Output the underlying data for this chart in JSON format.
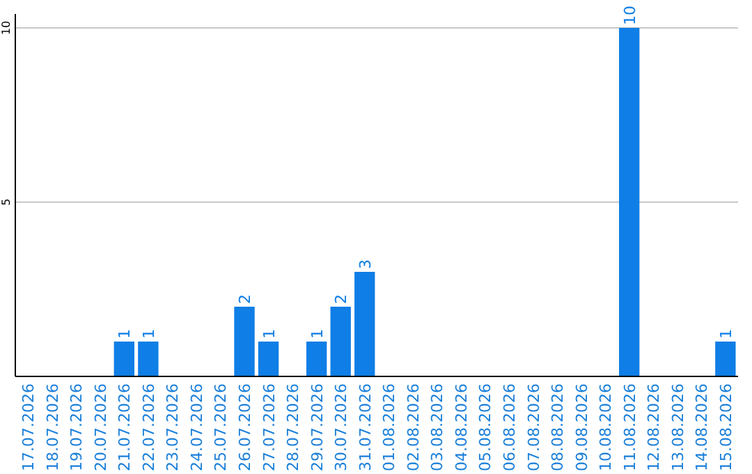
{
  "chart_data": {
    "type": "bar",
    "categories": [
      "17.07.2026",
      "18.07.2026",
      "19.07.2026",
      "20.07.2026",
      "21.07.2026",
      "22.07.2026",
      "23.07.2026",
      "24.07.2026",
      "25.07.2026",
      "26.07.2026",
      "27.07.2026",
      "28.07.2026",
      "29.07.2026",
      "30.07.2026",
      "31.07.2026",
      "01.08.2026",
      "02.08.2026",
      "03.08.2026",
      "04.08.2026",
      "05.08.2026",
      "06.08.2026",
      "07.08.2026",
      "08.08.2026",
      "09.08.2026",
      "10.08.2026",
      "11.08.2026",
      "12.08.2026",
      "13.08.2026",
      "14.08.2026",
      "15.08.2026"
    ],
    "values": [
      0,
      0,
      0,
      0,
      1,
      1,
      0,
      0,
      0,
      2,
      1,
      0,
      1,
      2,
      3,
      0,
      0,
      0,
      0,
      0,
      0,
      0,
      0,
      0,
      0,
      10,
      0,
      0,
      0,
      1
    ],
    "value_labels": [
      null,
      null,
      null,
      null,
      "1",
      "1",
      null,
      null,
      null,
      "2",
      "1",
      null,
      "1",
      "2",
      "3",
      null,
      null,
      null,
      null,
      null,
      null,
      null,
      null,
      null,
      null,
      "10",
      null,
      null,
      null,
      "1"
    ],
    "color": "#0f7ee6",
    "ylim": [
      0,
      10
    ],
    "yticks": [
      5,
      10
    ],
    "grid": "y"
  }
}
